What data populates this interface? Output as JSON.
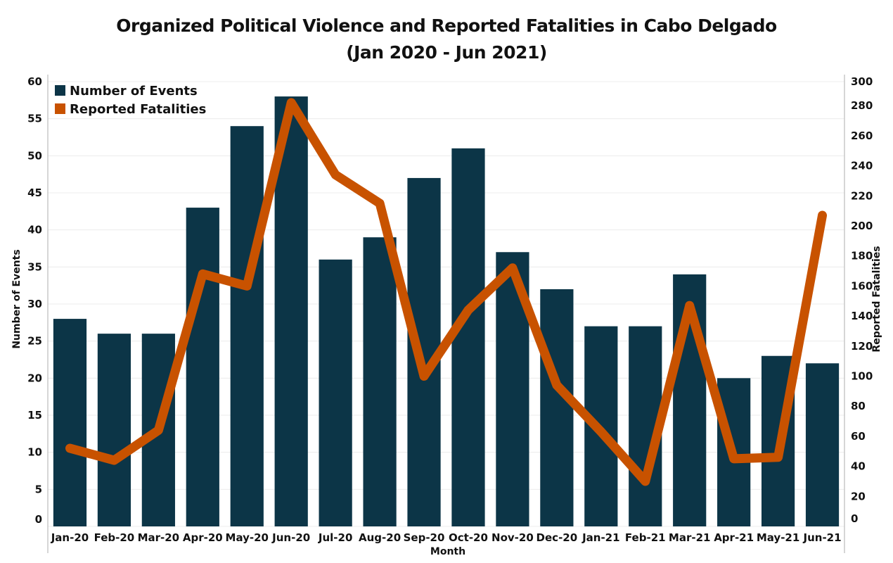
{
  "chart_data": {
    "type": "bar+line",
    "title": "Organized Political Violence and Reported Fatalities in Cabo Delgado",
    "subtitle": "(Jan 2020 - Jun 2021)",
    "xlabel": "Month",
    "ylabel": "Number of Events",
    "y2label": "Reported Fatalities",
    "categories": [
      "Jan-20",
      "Feb-20",
      "Mar-20",
      "Apr-20",
      "May-20",
      "Jun-20",
      "Jul-20",
      "Aug-20",
      "Sep-20",
      "Oct-20",
      "Nov-20",
      "Dec-20",
      "Jan-21",
      "Feb-21",
      "Mar-21",
      "Apr-21",
      "May-21",
      "Jun-21"
    ],
    "series": [
      {
        "name": "Number of Events",
        "type": "bar",
        "axis": "left",
        "color": "#0c3547",
        "values": [
          28,
          26,
          26,
          43,
          54,
          58,
          36,
          39,
          47,
          51,
          37,
          32,
          27,
          27,
          34,
          20,
          23,
          22
        ]
      },
      {
        "name": "Reported Fatalities",
        "type": "line",
        "axis": "right",
        "color": "#c85200",
        "values": [
          52,
          44,
          64,
          168,
          160,
          282,
          234,
          215,
          100,
          144,
          172,
          94,
          63,
          30,
          147,
          45,
          46,
          207
        ]
      }
    ],
    "ylim": [
      0,
      60
    ],
    "y2lim": [
      0,
      296
    ],
    "yticks": [
      0,
      5,
      10,
      15,
      20,
      25,
      30,
      35,
      40,
      45,
      50,
      55,
      60
    ],
    "y2ticks": [
      0,
      20,
      40,
      60,
      80,
      100,
      120,
      140,
      160,
      180,
      200,
      220,
      240,
      260,
      280,
      300
    ],
    "grid": true,
    "legend_position": "top-left"
  }
}
